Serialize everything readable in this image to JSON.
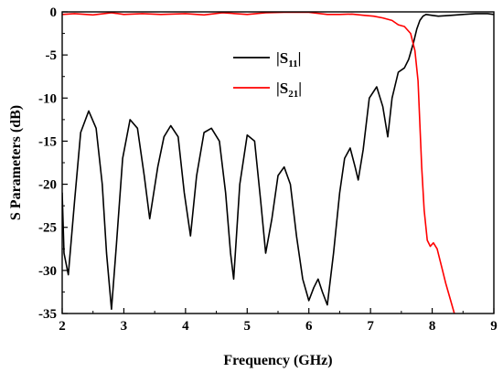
{
  "chart_data": {
    "type": "line",
    "title": "",
    "xlabel": "Frequency (GHz)",
    "ylabel": "S Parameters (dB)",
    "xlim": [
      2,
      9
    ],
    "ylim": [
      -35,
      0
    ],
    "x_ticks": [
      "2",
      "3",
      "4",
      "5",
      "6",
      "7",
      "8",
      "9"
    ],
    "y_ticks": [
      "0",
      "-5",
      "-10",
      "-15",
      "-20",
      "-25",
      "-30",
      "-35"
    ],
    "grid": false,
    "legend": "top-center",
    "series": [
      {
        "name": "|S11|",
        "legend_main": "|S",
        "legend_sub": "11",
        "legend_close": "|",
        "color": "#000000",
        "x": [
          2.0,
          2.03,
          2.1,
          2.2,
          2.3,
          2.43,
          2.55,
          2.65,
          2.72,
          2.8,
          2.88,
          2.98,
          3.1,
          3.22,
          3.33,
          3.42,
          3.55,
          3.65,
          3.76,
          3.88,
          3.98,
          4.08,
          4.18,
          4.3,
          4.42,
          4.55,
          4.65,
          4.73,
          4.78,
          4.88,
          5.0,
          5.12,
          5.22,
          5.3,
          5.4,
          5.5,
          5.6,
          5.7,
          5.8,
          5.9,
          6.0,
          6.08,
          6.15,
          6.22,
          6.3,
          6.4,
          6.5,
          6.58,
          6.67,
          6.75,
          6.8,
          6.88,
          6.98,
          7.1,
          7.2,
          7.28,
          7.35,
          7.45,
          7.55,
          7.62,
          7.7,
          7.75,
          7.8,
          7.85,
          7.9,
          8.0,
          8.1,
          8.3,
          8.5,
          8.7,
          8.9,
          9.0
        ],
        "values": [
          -21,
          -28,
          -30.5,
          -22,
          -14,
          -11.5,
          -13.5,
          -20,
          -28,
          -34.5,
          -27,
          -17,
          -12.5,
          -13.5,
          -19,
          -24,
          -18,
          -14.5,
          -13.2,
          -14.5,
          -21,
          -26,
          -19,
          -14,
          -13.5,
          -15,
          -21,
          -28,
          -31,
          -20,
          -14.3,
          -15,
          -22,
          -28,
          -24,
          -19,
          -18,
          -20,
          -26,
          -31,
          -33.5,
          -32,
          -31,
          -32.5,
          -34,
          -28,
          -21,
          -17,
          -15.8,
          -18,
          -19.5,
          -16,
          -10,
          -8.7,
          -11,
          -14.5,
          -10,
          -7,
          -6.5,
          -5.5,
          -3.5,
          -2,
          -1,
          -0.5,
          -0.3,
          -0.4,
          -0.5,
          -0.4,
          -0.3,
          -0.2,
          -0.2,
          -0.3
        ]
      },
      {
        "name": "|S21|",
        "legend_main": "|S",
        "legend_sub": "21",
        "legend_close": "|",
        "color": "#ff0000",
        "x": [
          2.0,
          2.2,
          2.5,
          2.8,
          3.0,
          3.3,
          3.6,
          4.0,
          4.3,
          4.6,
          5.0,
          5.3,
          5.6,
          6.0,
          6.3,
          6.5,
          6.7,
          6.9,
          7.05,
          7.2,
          7.35,
          7.45,
          7.55,
          7.65,
          7.72,
          7.77,
          7.8,
          7.83,
          7.87,
          7.92,
          7.97,
          8.02,
          8.08,
          8.15,
          8.22,
          8.3,
          8.36
        ],
        "values": [
          -0.3,
          -0.2,
          -0.35,
          -0.1,
          -0.3,
          -0.2,
          -0.3,
          -0.2,
          -0.35,
          -0.1,
          -0.3,
          -0.1,
          -0.05,
          -0.05,
          -0.3,
          -0.3,
          -0.25,
          -0.4,
          -0.5,
          -0.7,
          -1.0,
          -1.5,
          -1.7,
          -2.5,
          -4.5,
          -8,
          -13,
          -18,
          -23,
          -26.5,
          -27.2,
          -26.8,
          -27.5,
          -29.5,
          -31.5,
          -33.5,
          -35
        ]
      }
    ]
  }
}
